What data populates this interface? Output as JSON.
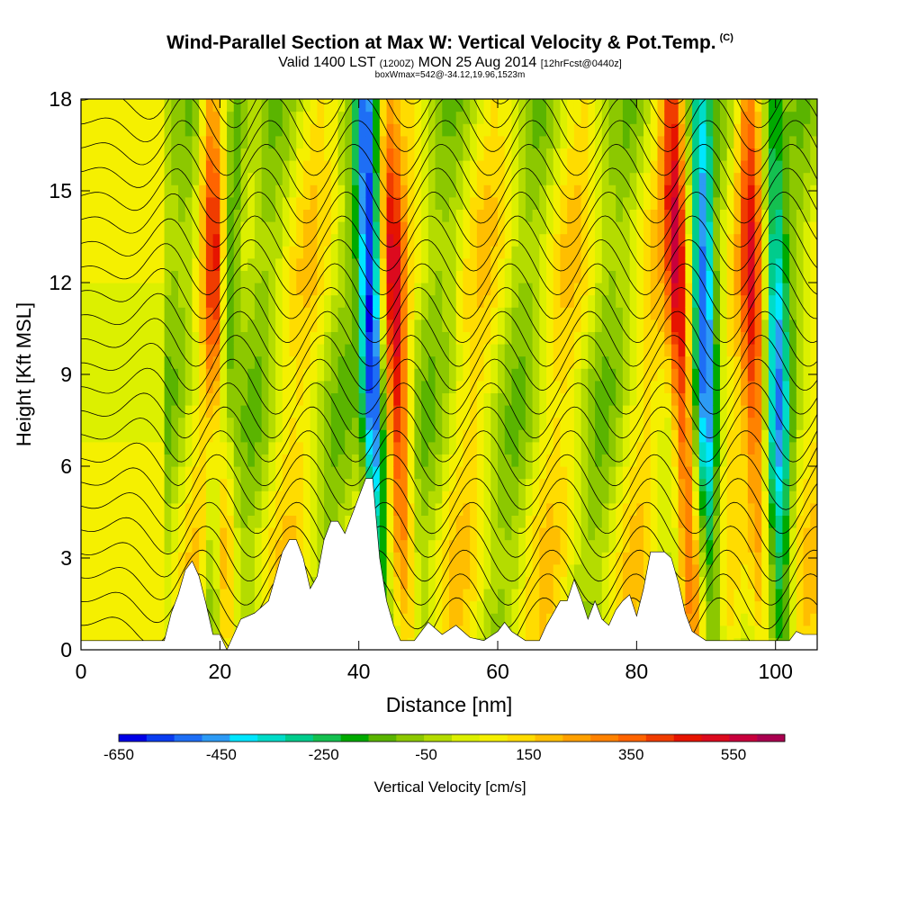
{
  "header": {
    "title": "Wind-Parallel Section at Max W: Vertical Velocity & Pot.Temp.",
    "copyright": "(C)",
    "valid_prefix": "Valid 1400 LST",
    "valid_utc": "(1200Z)",
    "valid_date": "MON 25 Aug 2014",
    "forecast": "[12hrFcst@0440z]",
    "boxmax": "boxWmax=542@-34.12,19.96,1523m"
  },
  "chart_data": {
    "type": "heatmap",
    "xlabel": "Distance [nm]",
    "ylabel": "Height [Kft MSL]",
    "xlim": [
      0,
      106
    ],
    "ylim": [
      0,
      18
    ],
    "x_ticks": [
      "0",
      "20",
      "40",
      "60",
      "80",
      "100"
    ],
    "x_tick_values": [
      0,
      20,
      40,
      60,
      80,
      100
    ],
    "y_ticks": [
      "0",
      "3",
      "6",
      "9",
      "12",
      "15",
      "18"
    ],
    "y_tick_values": [
      0,
      3,
      6,
      9,
      12,
      15,
      18
    ],
    "colorbar": {
      "label": "Vertical Velocity [cm/s]",
      "range": [
        -650,
        650
      ],
      "tick_labels": [
        "-650",
        "-450",
        "-250",
        "-50",
        "150",
        "350",
        "550"
      ],
      "tick_values": [
        -650,
        -450,
        -250,
        -50,
        150,
        350,
        550
      ],
      "colors": [
        "#0000e6",
        "#0a3cf0",
        "#1e6ef5",
        "#2d9bf5",
        "#00e6ff",
        "#00dcc8",
        "#00cc8c",
        "#14c050",
        "#00aa00",
        "#5ab400",
        "#8cc800",
        "#b4dc00",
        "#dcf000",
        "#f5f000",
        "#ffdc00",
        "#ffbe00",
        "#ffa000",
        "#ff8200",
        "#ff6400",
        "#f03c00",
        "#e61400",
        "#dc0a1e",
        "#c8003c",
        "#aa0050"
      ]
    },
    "updraft_bands": [
      {
        "x_top": 18.5,
        "x_bottom": 21,
        "w": 450
      },
      {
        "x_top": 44,
        "x_bottom": 47,
        "w": 450
      },
      {
        "x_top": 85,
        "x_bottom": 88,
        "w": 560
      },
      {
        "x_top": 96,
        "x_bottom": 98,
        "w": 420
      }
    ],
    "downdraft_bands": [
      {
        "x_top": 22.5,
        "x_bottom": 18.5,
        "w": -320
      },
      {
        "x_top": 41,
        "x_bottom": 43,
        "w": -600
      },
      {
        "x_top": 89,
        "x_bottom": 91,
        "w": -420
      },
      {
        "x_top": 99.5,
        "x_bottom": 101,
        "w": -330
      }
    ],
    "terrain_kft": [
      [
        0,
        0.3
      ],
      [
        12,
        0.3
      ],
      [
        13,
        1.2
      ],
      [
        14,
        1.8
      ],
      [
        15,
        2.6
      ],
      [
        16,
        2.9
      ],
      [
        17,
        2.4
      ],
      [
        18,
        1.5
      ],
      [
        19,
        0.5
      ],
      [
        20,
        0.5
      ],
      [
        21,
        0
      ],
      [
        22,
        0.5
      ],
      [
        23,
        1
      ],
      [
        25,
        1.2
      ],
      [
        27,
        1.6
      ],
      [
        28,
        2.4
      ],
      [
        29,
        3.2
      ],
      [
        30,
        3.6
      ],
      [
        31,
        3.6
      ],
      [
        32,
        3
      ],
      [
        33,
        2
      ],
      [
        34,
        2.4
      ],
      [
        35,
        3.6
      ],
      [
        36,
        4.2
      ],
      [
        37,
        4.2
      ],
      [
        38,
        3.8
      ],
      [
        39,
        4.4
      ],
      [
        40,
        5
      ],
      [
        41,
        5.6
      ],
      [
        42,
        5.6
      ],
      [
        43,
        3
      ],
      [
        44,
        1.6
      ],
      [
        45,
        0.8
      ],
      [
        46,
        0.3
      ],
      [
        48,
        0.3
      ],
      [
        49,
        0.6
      ],
      [
        50,
        0.9
      ],
      [
        52,
        0.5
      ],
      [
        54,
        0.8
      ],
      [
        56,
        0.4
      ],
      [
        58,
        0.3
      ],
      [
        60,
        0.6
      ],
      [
        61,
        0.9
      ],
      [
        62,
        0.6
      ],
      [
        64,
        0.3
      ],
      [
        66,
        0.3
      ],
      [
        67,
        0.8
      ],
      [
        68,
        1.2
      ],
      [
        69,
        1.6
      ],
      [
        70,
        1.6
      ],
      [
        71,
        2.3
      ],
      [
        72,
        1.7
      ],
      [
        73,
        1
      ],
      [
        74,
        1.6
      ],
      [
        75,
        1
      ],
      [
        76,
        0.8
      ],
      [
        77,
        1.3
      ],
      [
        78,
        1.6
      ],
      [
        79,
        1.8
      ],
      [
        80,
        1.1
      ],
      [
        81,
        2
      ],
      [
        82,
        3.2
      ],
      [
        83,
        3.2
      ],
      [
        84,
        3.2
      ],
      [
        85,
        3
      ],
      [
        86,
        2.2
      ],
      [
        87,
        1.2
      ],
      [
        88,
        0.6
      ],
      [
        90,
        0.3
      ],
      [
        102,
        0.3
      ],
      [
        103,
        0.6
      ],
      [
        104,
        0.5
      ],
      [
        106,
        0.5
      ]
    ]
  }
}
